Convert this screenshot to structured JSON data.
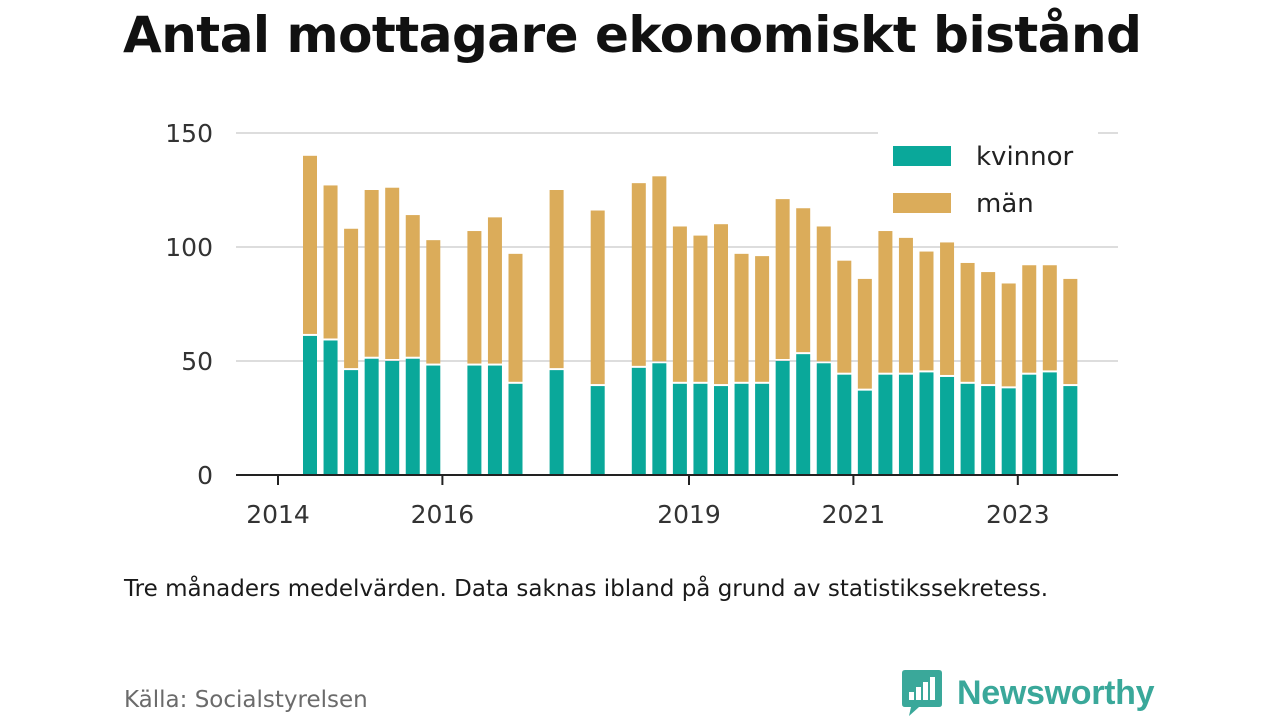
{
  "title": "Antal mottagare ekonomiskt bistånd",
  "note": "Tre månaders medelvärden. Data saknas ibland på grund av statistikssekretess.",
  "source": "Källa: Socialstyrelsen",
  "brand": {
    "name": "Newsworthy",
    "icon": "newsworthy-logo-icon",
    "color": "#3aa89a"
  },
  "chart_data": {
    "type": "bar",
    "stacked": true,
    "x_ticks": [
      "2014",
      "2016",
      "2019",
      "2021",
      "2023"
    ],
    "y_ticks": [
      0,
      50,
      100,
      150
    ],
    "ylim": [
      0,
      150
    ],
    "grid": true,
    "legend_position": "top-right",
    "categories": [
      "2014Q3",
      "2014Q4",
      "2015Q1",
      "2015Q2",
      "2015Q3",
      "2015Q4",
      "2016Q1",
      "2016Q3",
      "2016Q4",
      "2017Q1",
      "2017Q3",
      "2018Q1",
      "2018Q3",
      "2018Q4",
      "2019Q1",
      "2019Q2",
      "2019Q3",
      "2019Q4",
      "2020Q1",
      "2020Q2",
      "2020Q3",
      "2020Q4",
      "2021Q1",
      "2021Q2",
      "2021Q3",
      "2021Q4",
      "2022Q1",
      "2022Q2",
      "2022Q3",
      "2022Q4",
      "2023Q1",
      "2023Q2",
      "2023Q3",
      "2023Q4"
    ],
    "series": [
      {
        "name": "kvinnor",
        "color": "#0aa89a",
        "values": [
          61,
          59,
          46,
          51,
          50,
          51,
          48,
          48,
          48,
          40,
          46,
          39,
          47,
          49,
          40,
          40,
          39,
          40,
          40,
          50,
          53,
          49,
          44,
          37,
          44,
          44,
          45,
          43,
          40,
          39,
          38,
          44,
          45,
          39
        ]
      },
      {
        "name": "män",
        "color": "#dbac5a",
        "values": [
          79,
          68,
          62,
          74,
          76,
          63,
          55,
          59,
          65,
          57,
          79,
          77,
          81,
          82,
          69,
          65,
          71,
          57,
          56,
          71,
          64,
          60,
          50,
          49,
          63,
          60,
          53,
          59,
          53,
          50,
          46,
          48,
          47,
          47
        ]
      }
    ]
  }
}
